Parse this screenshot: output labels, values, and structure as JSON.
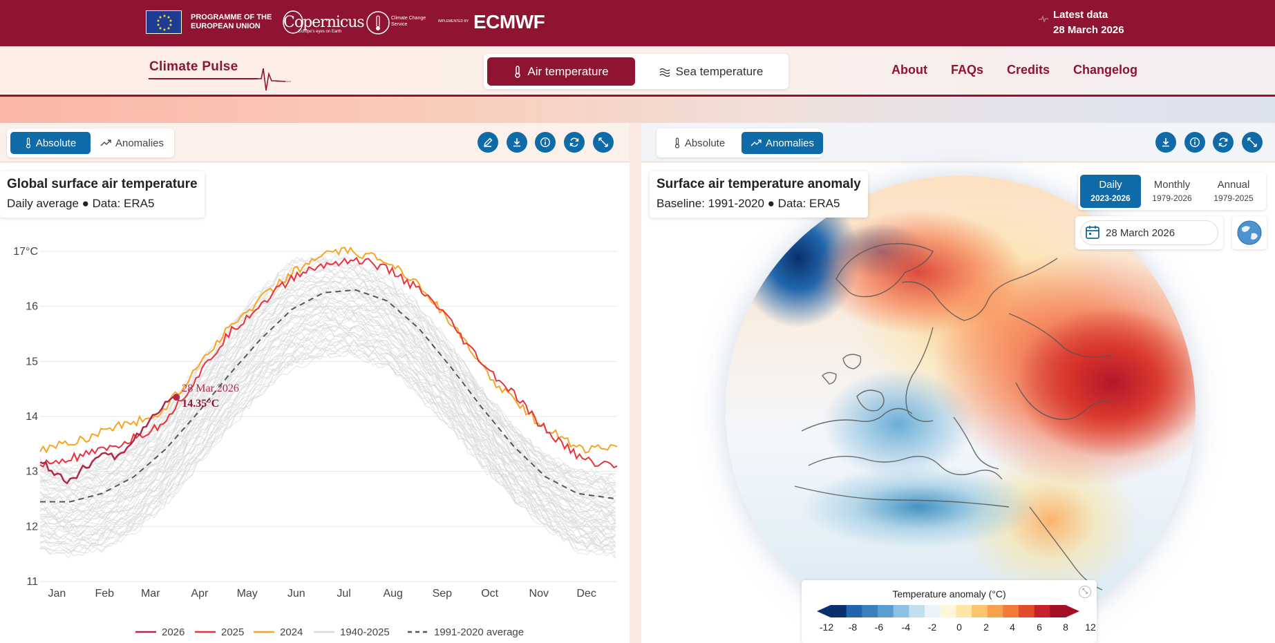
{
  "header": {
    "eu_text": "PROGRAMME OF THE EUROPEAN UNION",
    "copernicus": "Copernicus",
    "copernicus_tagline": "Europe's eyes on Earth",
    "c3s": "Climate Change Service",
    "implemented_by": "IMPLEMENTED BY",
    "ecmwf": "ECMWF",
    "latest_label": "Latest data",
    "latest_date": "28 March 2026"
  },
  "nav": {
    "logo": "Climate Pulse",
    "tabs": [
      {
        "label": "Air temperature",
        "active": true
      },
      {
        "label": "Sea temperature",
        "active": false
      }
    ],
    "links": [
      "About",
      "FAQs",
      "Credits",
      "Changelog"
    ]
  },
  "left_panel": {
    "toggle": [
      {
        "label": "Absolute",
        "active": true
      },
      {
        "label": "Anomalies",
        "active": false
      }
    ],
    "actions": [
      "edit-icon",
      "download-icon",
      "info-icon",
      "refresh-icon",
      "expand-icon"
    ],
    "title": "Global surface air temperature",
    "subtitle": "Daily average ● Data: ERA5"
  },
  "chart_data": {
    "type": "line",
    "title": "Global surface air temperature",
    "subtitle": "Daily average ● Data: ERA5",
    "ylabel": "",
    "y_ticks": [
      "17°C",
      "16",
      "15",
      "14",
      "13",
      "12",
      "11"
    ],
    "ylim": [
      11,
      17.3
    ],
    "x_ticks": [
      "Jan",
      "Feb",
      "Mar",
      "Apr",
      "May",
      "Jun",
      "Jul",
      "Aug",
      "Sep",
      "Oct",
      "Nov",
      "Dec"
    ],
    "x_unit": "day of year",
    "series": [
      {
        "name": "2026",
        "color": "#b0294b",
        "x": [
          1,
          10,
          20,
          30,
          40,
          50,
          60,
          70,
          80,
          87
        ],
        "y": [
          13.2,
          13.0,
          12.8,
          13.1,
          13.3,
          13.25,
          13.6,
          13.9,
          14.2,
          14.35
        ]
      },
      {
        "name": "2025",
        "color": "#e8323c",
        "x": [
          1,
          15,
          30,
          45,
          60,
          75,
          90,
          105,
          120,
          135,
          150,
          165,
          180,
          195,
          210,
          225,
          240,
          255,
          270,
          285,
          300,
          315,
          330,
          345,
          365
        ],
        "y": [
          13.1,
          13.2,
          13.3,
          13.4,
          13.6,
          13.8,
          14.3,
          14.9,
          15.5,
          15.9,
          16.3,
          16.6,
          16.75,
          16.85,
          16.8,
          16.6,
          16.3,
          15.9,
          15.3,
          14.8,
          14.4,
          13.9,
          13.5,
          13.2,
          13.1
        ]
      },
      {
        "name": "2024",
        "color": "#f5a623",
        "x": [
          1,
          15,
          30,
          45,
          60,
          75,
          90,
          105,
          120,
          135,
          150,
          165,
          180,
          195,
          210,
          225,
          240,
          255,
          270,
          285,
          300,
          315,
          330,
          345,
          365
        ],
        "y": [
          13.4,
          13.5,
          13.6,
          13.8,
          13.9,
          14.0,
          14.5,
          15.1,
          15.6,
          16.0,
          16.4,
          16.7,
          16.95,
          17.0,
          16.9,
          16.75,
          16.4,
          15.9,
          15.3,
          14.7,
          14.3,
          13.9,
          13.6,
          13.4,
          13.45
        ]
      },
      {
        "name": "1940-2025",
        "color": "#d9d9d9",
        "band_lower": [
          11.6,
          11.5,
          11.6,
          11.9,
          12.4,
          13.1,
          13.8,
          14.4,
          14.9,
          15.1,
          15.1,
          14.9,
          14.4,
          13.8,
          13.1,
          12.5,
          12.0,
          11.6,
          11.5
        ],
        "band_upper": [
          13.2,
          13.1,
          13.2,
          13.5,
          14.1,
          14.9,
          15.6,
          16.3,
          16.8,
          16.9,
          16.8,
          16.5,
          16.0,
          15.3,
          14.5,
          13.8,
          13.3,
          13.0,
          12.9
        ],
        "band_x": [
          1,
          20,
          40,
          60,
          80,
          100,
          120,
          140,
          160,
          180,
          200,
          220,
          240,
          260,
          280,
          300,
          320,
          340,
          365
        ]
      },
      {
        "name": "1991-2020 average",
        "color": "#555555",
        "dashed": true,
        "x": [
          1,
          20,
          40,
          60,
          80,
          100,
          120,
          140,
          160,
          180,
          200,
          220,
          240,
          260,
          280,
          300,
          320,
          340,
          365
        ],
        "y": [
          12.45,
          12.45,
          12.6,
          12.9,
          13.4,
          14.05,
          14.75,
          15.4,
          15.95,
          16.25,
          16.3,
          16.1,
          15.6,
          14.9,
          14.15,
          13.45,
          12.9,
          12.6,
          12.5
        ]
      }
    ],
    "annotation": {
      "date": "28 Mar 2026",
      "value": "14.35°C",
      "x": 87,
      "y": 14.35
    },
    "legend": [
      "2026",
      "2025",
      "2024",
      "1940-2025",
      "1991-2020 average"
    ],
    "legend_position": "bottom",
    "grid": true
  },
  "right_panel": {
    "toggle": [
      {
        "label": "Absolute",
        "active": false
      },
      {
        "label": "Anomalies",
        "active": true
      }
    ],
    "actions": [
      "download-icon",
      "info-icon",
      "refresh-icon",
      "expand-icon"
    ],
    "title": "Surface air temperature anomaly",
    "subtitle": "Baseline: 1991-2020 ● Data: ERA5",
    "periods": [
      {
        "label": "Daily",
        "range": "2023-2026",
        "active": true
      },
      {
        "label": "Monthly",
        "range": "1979-2026",
        "active": false
      },
      {
        "label": "Annual",
        "range": "1979-2025",
        "active": false
      }
    ],
    "date_value": "28 March 2026",
    "legend_title": "Temperature anomaly (°C)",
    "legend_ticks": [
      "-12",
      "-8",
      "-6",
      "-4",
      "-2",
      "0",
      "2",
      "4",
      "6",
      "8",
      "12"
    ],
    "legend_colors": [
      "#08306b",
      "#2166ac",
      "#3a7fc0",
      "#5a9ed1",
      "#8cc1e3",
      "#c2dff0",
      "#eaf3f8",
      "#fdf6d8",
      "#fde7a6",
      "#fdc66e",
      "#f9a04b",
      "#f07a36",
      "#e14d2a",
      "#c7212b",
      "#a50f26"
    ]
  }
}
